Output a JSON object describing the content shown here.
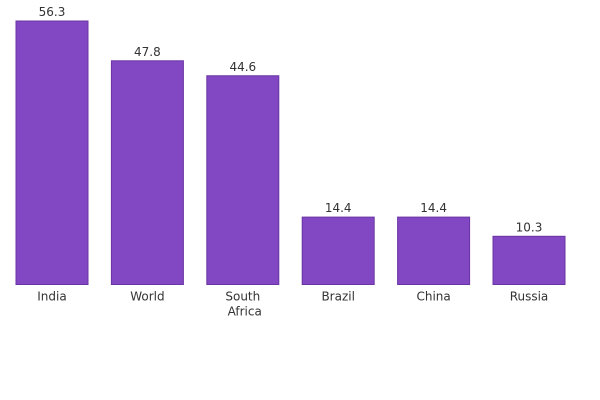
{
  "chart_data": {
    "type": "bar",
    "categories": [
      "India",
      "World",
      "South Africa",
      "Brazil",
      "China",
      "Russia"
    ],
    "values": [
      56.3,
      47.8,
      44.6,
      14.4,
      14.4,
      10.3
    ],
    "color": "#8247c2"
  }
}
